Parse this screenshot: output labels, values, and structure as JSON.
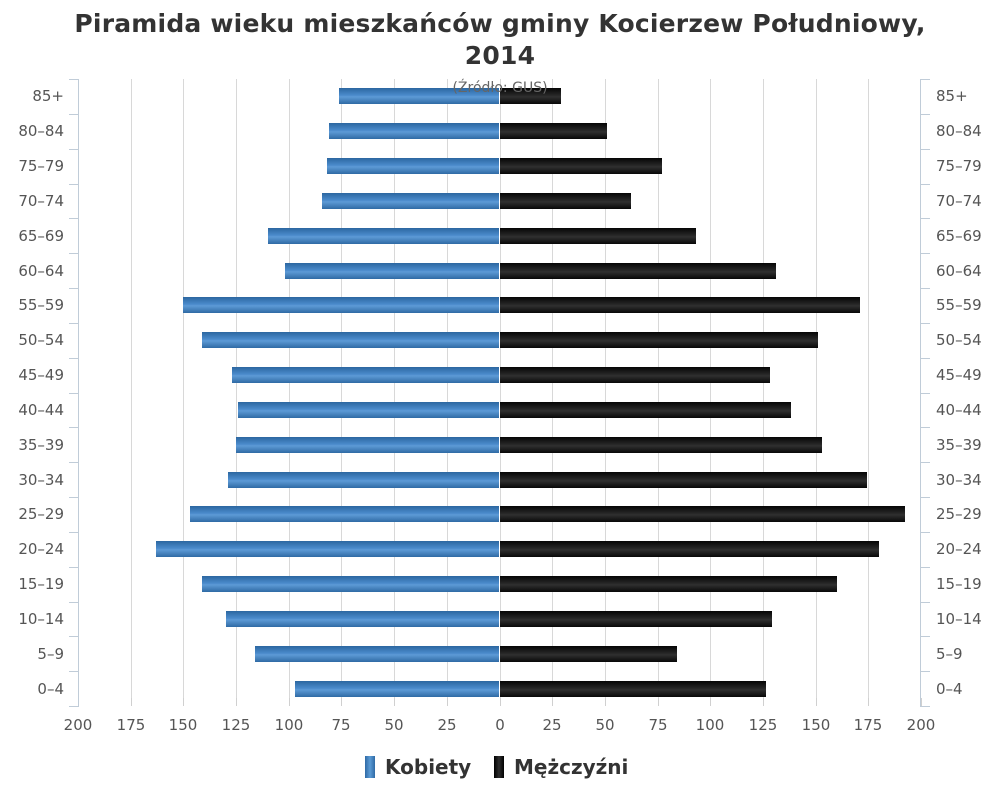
{
  "chart_data": {
    "type": "bar",
    "orientation": "horizontal",
    "subtype": "population-pyramid",
    "title": "Piramida wieku mieszkańców gminy Kocierzew Południowy, 2014",
    "title_line1": "Piramida wieku mieszkańców gminy Kocierzew Południowy,",
    "title_line2": "2014",
    "subtitle": "(Źródło: GUS)",
    "xlabel": "",
    "ylabel": "",
    "xlim": [
      -200,
      200
    ],
    "x_ticks": [
      "200",
      "175",
      "150",
      "125",
      "100",
      "75",
      "50",
      "25",
      "0",
      "25",
      "50",
      "75",
      "100",
      "125",
      "150",
      "175",
      "200"
    ],
    "grid": true,
    "legend_position": "bottom",
    "categories": [
      "85+",
      "80-84",
      "75-79",
      "70-74",
      "65-69",
      "60-64",
      "55-59",
      "50-54",
      "45-49",
      "40-44",
      "35-39",
      "30-34",
      "25-29",
      "20-24",
      "15-19",
      "10-14",
      "5-9",
      "0-4"
    ],
    "series": [
      {
        "name": "Kobiety",
        "side": "left",
        "color": "#4a85c4",
        "values": [
          76,
          81,
          82,
          84,
          110,
          102,
          150,
          141,
          127,
          124,
          125,
          129,
          147,
          163,
          141,
          130,
          116,
          97
        ]
      },
      {
        "name": "Mężczyźni",
        "side": "right",
        "color": "#1a1a1a",
        "values": [
          29,
          51,
          77,
          62,
          93,
          131,
          171,
          151,
          128,
          138,
          153,
          174,
          192,
          180,
          160,
          129,
          84,
          126
        ]
      }
    ]
  },
  "legend": {
    "items": [
      {
        "label": "Kobiety",
        "color": "#4a85c4"
      },
      {
        "label": "Mężczyźni",
        "color": "#1a1a1a"
      }
    ]
  }
}
